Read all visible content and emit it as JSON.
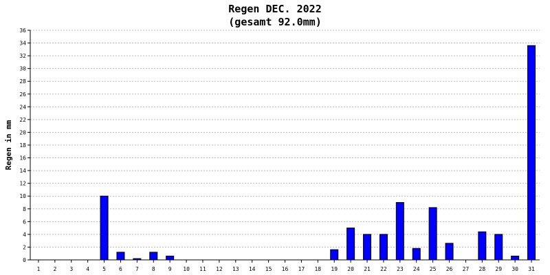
{
  "chart_data": {
    "type": "bar",
    "title": "Regen DEC. 2022",
    "subtitle": "(gesamt 92.0mm)",
    "xlabel": "",
    "ylabel": "Regen in mm",
    "ylim": [
      0,
      36
    ],
    "ytick_step": 2,
    "grid": true,
    "bar_color": "#0000ff",
    "categories": [
      "1",
      "2",
      "3",
      "4",
      "5",
      "6",
      "7",
      "8",
      "9",
      "10",
      "11",
      "12",
      "13",
      "14",
      "15",
      "16",
      "17",
      "18",
      "19",
      "20",
      "21",
      "22",
      "23",
      "24",
      "25",
      "26",
      "27",
      "28",
      "29",
      "30",
      "31"
    ],
    "values": [
      0,
      0,
      0,
      0,
      10,
      1.2,
      0.2,
      1.2,
      0.6,
      0,
      0,
      0,
      0,
      0,
      0,
      0,
      0,
      0,
      1.6,
      5,
      4,
      4,
      9,
      1.8,
      8.2,
      2.6,
      0,
      4.4,
      4,
      0.6,
      33.6
    ]
  }
}
